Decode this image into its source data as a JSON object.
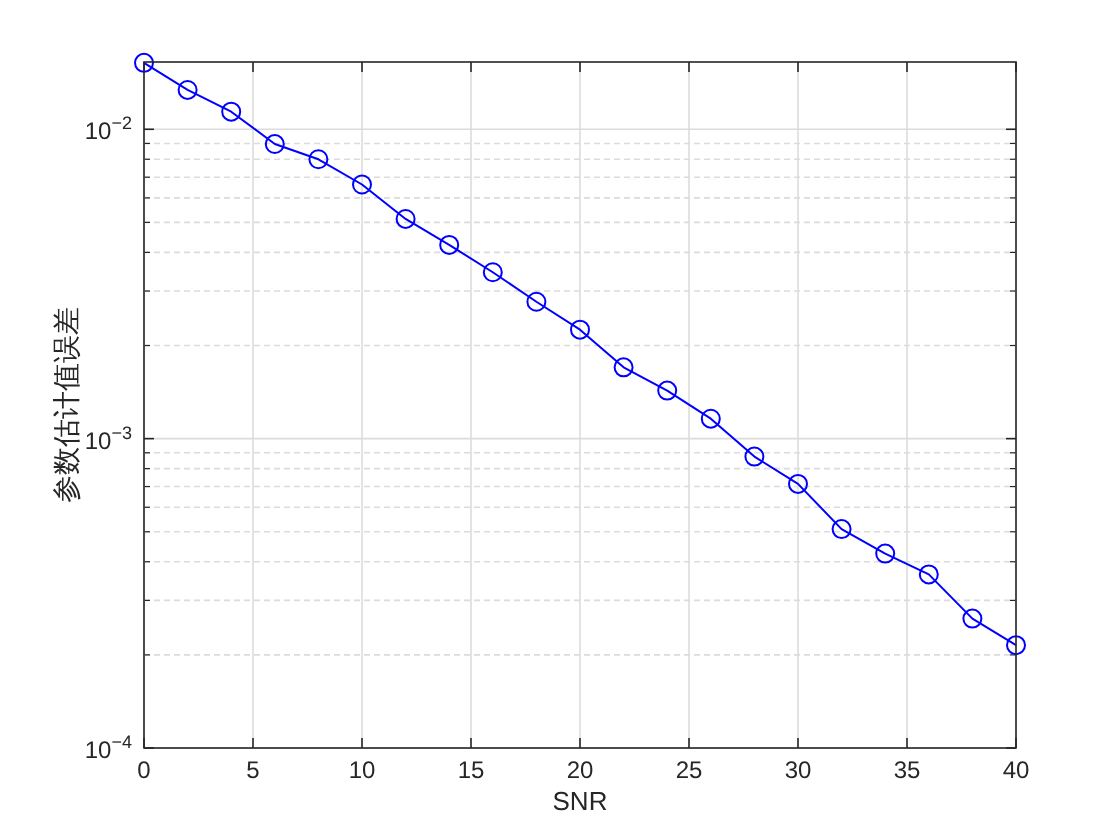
{
  "chart_data": {
    "type": "line",
    "xlabel": "SNR",
    "ylabel": "参数估计值误差",
    "x": [
      0,
      2,
      4,
      6,
      8,
      10,
      12,
      14,
      16,
      18,
      20,
      22,
      24,
      26,
      28,
      30,
      32,
      34,
      36,
      38,
      40
    ],
    "series": [
      {
        "color": "#0000ff",
        "values": [
          0.0164,
          0.0134,
          0.0114,
          0.00896,
          0.008,
          0.00663,
          0.00513,
          0.00423,
          0.00345,
          0.00277,
          0.00225,
          0.0017,
          0.00143,
          0.00116,
          0.000875,
          0.000714,
          0.00051,
          0.000425,
          0.000364,
          0.000262,
          0.000215
        ]
      }
    ],
    "marker": "circle",
    "line_style": "solid",
    "log": "y",
    "grid": true,
    "xlim": [
      0,
      40
    ],
    "xticks": [
      0,
      5,
      10,
      15,
      20,
      25,
      30,
      35,
      40
    ],
    "ylim": [
      0.0001,
      0.0165
    ],
    "yticks": [
      {
        "value": 0.0001,
        "label": "10$^{−4}$"
      },
      {
        "value": 0.001,
        "label": "10$^{−3}$"
      },
      {
        "value": 0.01,
        "label": "10$^{−2}$"
      }
    ]
  }
}
